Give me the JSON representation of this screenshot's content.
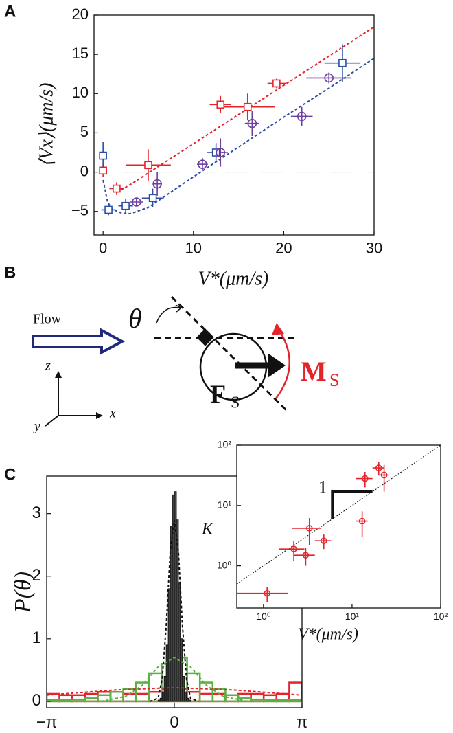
{
  "panel_labels": [
    "A",
    "B",
    "C"
  ],
  "diagram": {
    "flow": "Flow",
    "theta": "θ",
    "axis_z": "z",
    "axis_y": "y",
    "axis_x": "x",
    "force": "F",
    "force_sub": "S",
    "moment": "M",
    "moment_sub": "S"
  },
  "chart_data": [
    {
      "type": "scatter",
      "xlabel": "V*(μm/s)",
      "ylabel": "⟨Vx⟩(μm/s)",
      "xlim": [
        -1,
        30
      ],
      "ylim": [
        -8,
        20
      ],
      "xticks": [
        0,
        10,
        20,
        30
      ],
      "yticks": [
        {
          "value": -5,
          "label": "−5"
        },
        0,
        5,
        10,
        15,
        20
      ],
      "reference_line": 0,
      "series": [
        {
          "color": "#e3242b",
          "marker": "square",
          "x": [
            0,
            1.5,
            5,
            13,
            16,
            19.2
          ],
          "values": [
            0.2,
            -2.1,
            0.9,
            8.6,
            8.3,
            11.3
          ],
          "xerr": [
            0.2,
            0.8,
            2.5,
            1.2,
            3,
            1
          ],
          "yerr": [
            0.8,
            0.8,
            2,
            1.1,
            1.7,
            0.6
          ]
        },
        {
          "color": "#2b4fa3",
          "marker": "square",
          "x": [
            0,
            0.6,
            2.5,
            5.5,
            12.5,
            26.5
          ],
          "values": [
            2.1,
            -4.8,
            -4.3,
            -3.3,
            2.5,
            13.9
          ],
          "xerr": [
            0.2,
            0.8,
            0.8,
            1.2,
            1,
            2
          ],
          "yerr": [
            1.8,
            0.7,
            0.9,
            1.2,
            1.2,
            2.4
          ]
        },
        {
          "color": "#6b3fa0",
          "marker": "circle",
          "x": [
            3.7,
            6,
            11,
            13,
            16.5,
            22,
            25
          ],
          "values": [
            -3.8,
            -1.5,
            1.0,
            2.5,
            6.2,
            7.1,
            12
          ],
          "xerr": [
            0.7,
            0.5,
            0.6,
            0.8,
            0.8,
            1.2,
            2.5
          ],
          "yerr": [
            0.5,
            1.5,
            0.8,
            1.8,
            1.6,
            1.2,
            0.7
          ]
        }
      ],
      "fits": [
        {
          "color": "#e3242b",
          "x": [
            1.5,
            3,
            30
          ],
          "values": [
            -2.6,
            -1.6,
            18.5
          ]
        },
        {
          "color": "#2b4fa3",
          "x": [
            0,
            0.5,
            1,
            2,
            3,
            5,
            10,
            15,
            20,
            25,
            30
          ],
          "values": [
            -1,
            -3.8,
            -4.7,
            -5.2,
            -5.3,
            -4.5,
            -0.6,
            3.2,
            7.0,
            10.7,
            14.5
          ]
        }
      ]
    },
    {
      "type": "histogram",
      "ylabel": "P(θ)",
      "xlim": [
        -3.1416,
        3.1416
      ],
      "ylim": [
        -0.1,
        3.6
      ],
      "xticks": [
        {
          "value": -3.1416,
          "label": "−π"
        },
        0,
        {
          "value": 3.1416,
          "label": "π"
        }
      ],
      "yticks": [
        0,
        1,
        2,
        3
      ],
      "series": [
        {
          "color": "#e3242b",
          "filled": false,
          "bins": [
            -3.1416,
            -2.8274,
            -2.5133,
            -2.1991,
            -1.885,
            -1.5708,
            -1.2566,
            -0.9425,
            -0.6283,
            -0.3142,
            0,
            0.3142,
            0.6283,
            0.9425,
            1.2566,
            1.5708,
            1.885,
            2.1991,
            2.5133,
            2.8274,
            3.1416
          ],
          "values": [
            0.12,
            0.1,
            0.1,
            0.12,
            0.15,
            0.15,
            0.12,
            0.12,
            0.15,
            0.2,
            0.2,
            0.15,
            0.12,
            0.12,
            0.1,
            0.12,
            0.12,
            0.1,
            0.12,
            0.3
          ]
        },
        {
          "color": "#5bb043",
          "filled": false,
          "bins": [
            -3.1416,
            -2.8274,
            -2.5133,
            -2.1991,
            -1.885,
            -1.5708,
            -1.2566,
            -0.9425,
            -0.6283,
            -0.3142,
            0,
            0.3142,
            0.6283,
            0.9425,
            1.2566,
            1.5708,
            1.885,
            2.1991,
            2.5133,
            2.8274,
            3.1416
          ],
          "values": [
            0.02,
            0.02,
            0.03,
            0.05,
            0.1,
            0.15,
            0.2,
            0.3,
            0.45,
            0.6,
            0.7,
            0.45,
            0.3,
            0.2,
            0.1,
            0.05,
            0.03,
            0.02,
            0.02,
            0.02
          ]
        },
        {
          "color": "#111111",
          "filled": true,
          "bins": [
            -0.4,
            -0.35,
            -0.3,
            -0.25,
            -0.2,
            -0.15,
            -0.1,
            -0.05,
            0,
            0.05,
            0.1,
            0.15,
            0.2,
            0.25,
            0.3,
            0.35,
            0.4
          ],
          "values": [
            0.02,
            0.05,
            0.15,
            0.4,
            0.9,
            1.8,
            2.8,
            3.3,
            3.35,
            2.9,
            1.9,
            1.0,
            0.4,
            0.15,
            0.05,
            0.02
          ]
        }
      ],
      "fits": [
        {
          "color": "#e3242b",
          "x": [
            -3.14,
            -1.5,
            0,
            1.5,
            3.14
          ],
          "values": [
            0.1,
            0.18,
            0.22,
            0.18,
            0.1
          ]
        },
        {
          "color": "#5bb043",
          "x": [
            -1.8,
            -1.2,
            -0.8,
            -0.4,
            0,
            0.4,
            0.8,
            1.2,
            1.8
          ],
          "values": [
            0,
            0.08,
            0.25,
            0.55,
            0.7,
            0.55,
            0.25,
            0.08,
            0
          ]
        },
        {
          "color": "#111111",
          "x": [
            -0.6,
            -0.4,
            -0.3,
            -0.2,
            -0.1,
            0,
            0.1,
            0.2,
            0.3,
            0.4,
            0.6
          ],
          "values": [
            0,
            0.05,
            0.35,
            1.2,
            2.4,
            2.9,
            2.4,
            1.2,
            0.35,
            0.05,
            0
          ]
        }
      ]
    },
    {
      "type": "scatter",
      "log_x": true,
      "log_y": true,
      "xlabel": "V*(μm/s)",
      "ylabel": "K",
      "annotation": "1",
      "diagonal": true,
      "xlim": [
        0.5,
        100
      ],
      "ylim": [
        0.2,
        100
      ],
      "xticks": [
        {
          "value": 1,
          "label": "10⁰"
        },
        {
          "value": 10,
          "label": "10¹"
        },
        {
          "value": 100,
          "label": "10²"
        }
      ],
      "yticks": [
        {
          "value": 1,
          "label": "10⁰"
        },
        {
          "value": 10,
          "label": "10¹"
        },
        {
          "value": 100,
          "label": "10²"
        }
      ],
      "series": [
        {
          "color": "#e3242b",
          "marker": "circle",
          "x": [
            1.1,
            2.2,
            3,
            3.3,
            4.8,
            13,
            14,
            20,
            23
          ],
          "values": [
            0.35,
            1.9,
            1.5,
            4.2,
            2.6,
            5.5,
            28,
            42,
            32
          ],
          "xerr": [
            0.8,
            0.7,
            0.8,
            1.2,
            1,
            2,
            3,
            3,
            3
          ],
          "yerr": [
            0.1,
            0.7,
            0.5,
            2,
            0.7,
            2.5,
            8,
            10,
            15
          ]
        }
      ]
    }
  ]
}
